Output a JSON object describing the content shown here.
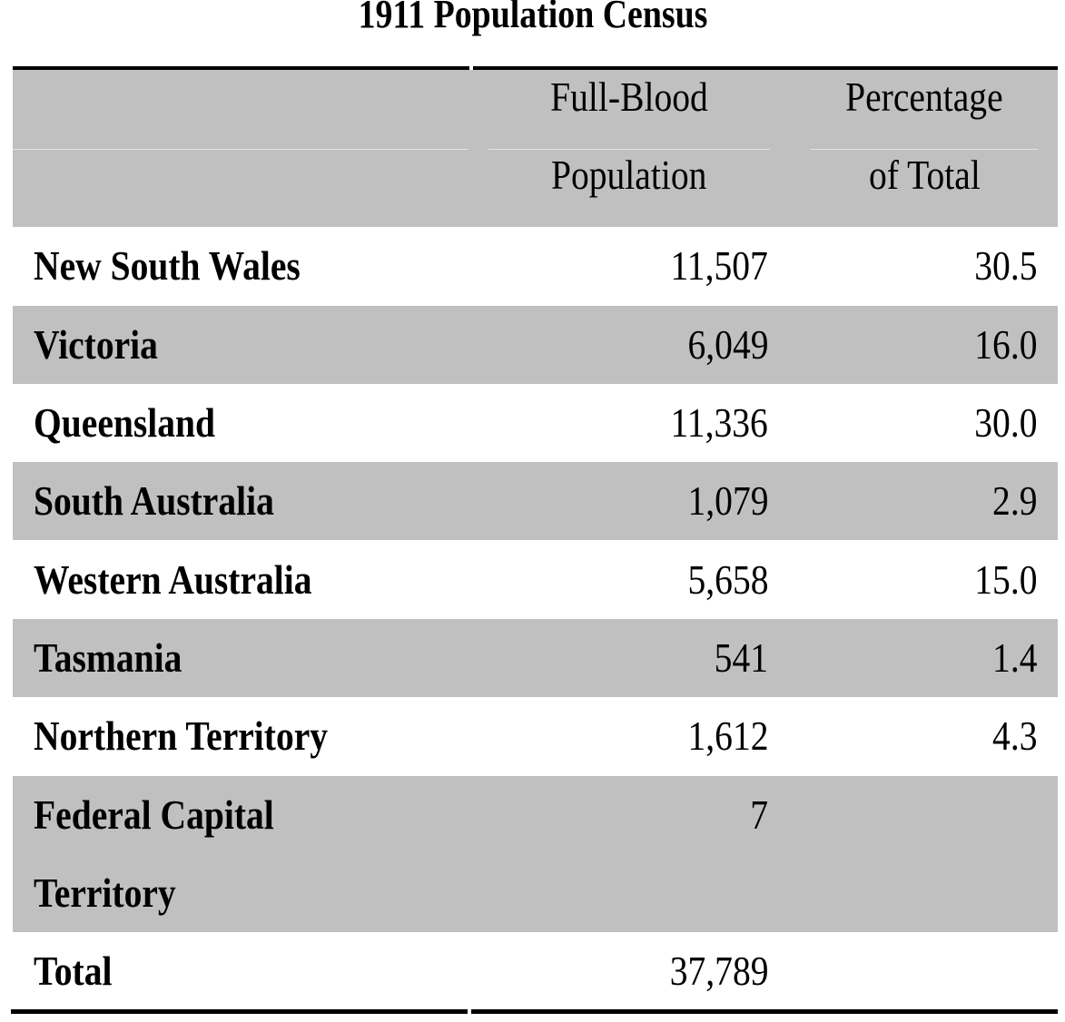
{
  "title": "1911 Population Census",
  "header": {
    "col2_line1": "Full-Blood",
    "col2_line2": "Population",
    "col3_line1": "Percentage",
    "col3_line2": "of Total"
  },
  "rows": [
    {
      "region": "New South Wales",
      "population": "11,507",
      "percentage": "30.5"
    },
    {
      "region": "Victoria",
      "population": "6,049",
      "percentage": "16.0"
    },
    {
      "region": "Queensland",
      "population": "11,336",
      "percentage": "30.0"
    },
    {
      "region": "South Australia",
      "population": "1,079",
      "percentage": "2.9"
    },
    {
      "region": "Western Australia",
      "population": "5,658",
      "percentage": "15.0"
    },
    {
      "region": "Tasmania",
      "population": "541",
      "percentage": "1.4"
    },
    {
      "region": "Northern Territory",
      "population": "1,612",
      "percentage": "4.3"
    },
    {
      "region": "Federal Capital Territory",
      "population": "7",
      "percentage": ""
    },
    {
      "region": "Total",
      "population": "37,789",
      "percentage": ""
    }
  ],
  "colors": {
    "shade": "#c0c0c0",
    "rule": "#000000"
  }
}
